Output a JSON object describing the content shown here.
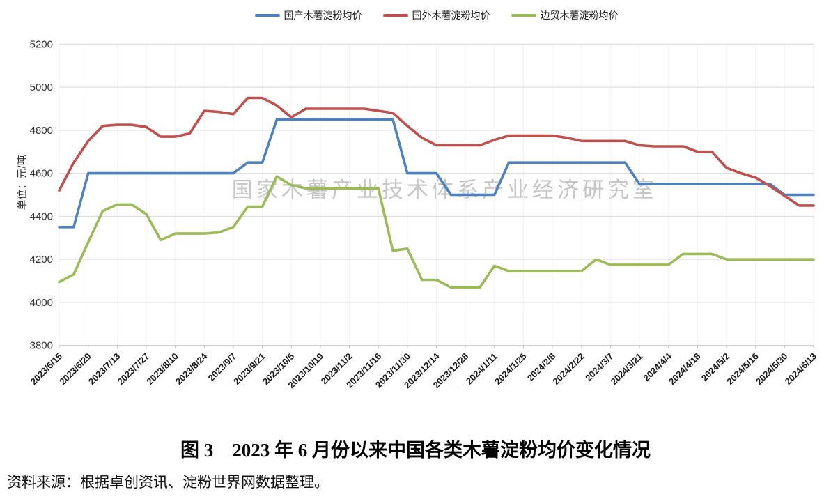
{
  "figure": {
    "title": "图 3　2023 年 6 月份以来中国各类木薯淀粉均价变化情况",
    "source": "资料来源：根据卓创资讯、淀粉世界网数据整理。"
  },
  "watermark": "国家木薯产业技术体系产业经济研究室",
  "chart_data": {
    "type": "line",
    "title": "",
    "xlabel": "",
    "ylabel": "单位：元/吨",
    "ylim": [
      3800,
      5200
    ],
    "y_ticks": [
      3800,
      4000,
      4200,
      4400,
      4600,
      4800,
      5000,
      5200
    ],
    "grid": true,
    "legend_position": "top-center",
    "x_tick_every": 2,
    "x": [
      "2023/6/15",
      "2023/6/22",
      "2023/6/29",
      "2023/7/6",
      "2023/7/13",
      "2023/7/20",
      "2023/7/27",
      "2023/8/3",
      "2023/8/10",
      "2023/8/17",
      "2023/8/24",
      "2023/8/31",
      "2023/9/7",
      "2023/9/14",
      "2023/9/21",
      "2023/9/28",
      "2023/10/5",
      "2023/10/12",
      "2023/10/19",
      "2023/10/26",
      "2023/11/2",
      "2023/11/9",
      "2023/11/16",
      "2023/11/23",
      "2023/11/30",
      "2023/12/7",
      "2023/12/14",
      "2023/12/21",
      "2023/12/28",
      "2024/1/4",
      "2024/1/11",
      "2024/1/18",
      "2024/1/25",
      "2024/2/1",
      "2024/2/8",
      "2024/2/15",
      "2024/2/22",
      "2024/2/29",
      "2024/3/7",
      "2024/3/14",
      "2024/3/21",
      "2024/3/28",
      "2024/4/4",
      "2024/4/11",
      "2024/4/18",
      "2024/4/25",
      "2024/5/2",
      "2024/5/9",
      "2024/5/16",
      "2024/5/23",
      "2024/5/30",
      "2024/6/6",
      "2024/6/13"
    ],
    "series": [
      {
        "name": "国产木薯淀粉均价",
        "color": "#4F81BD",
        "values": [
          4350,
          4350,
          4600,
          4600,
          4600,
          4600,
          4600,
          4600,
          4600,
          4600,
          4600,
          4600,
          4600,
          4650,
          4650,
          4850,
          4850,
          4850,
          4850,
          4850,
          4850,
          4850,
          4850,
          4850,
          4600,
          4600,
          4600,
          4500,
          4500,
          4500,
          4500,
          4650,
          4650,
          4650,
          4650,
          4650,
          4650,
          4650,
          4650,
          4650,
          4550,
          4550,
          4550,
          4550,
          4550,
          4550,
          4550,
          4550,
          4550,
          4550,
          4500,
          4500,
          4500
        ]
      },
      {
        "name": "国外木薯淀粉均价",
        "color": "#C0504D",
        "values": [
          4520,
          4650,
          4750,
          4820,
          4825,
          4825,
          4815,
          4770,
          4770,
          4785,
          4890,
          4885,
          4875,
          4950,
          4950,
          4915,
          4860,
          4900,
          4900,
          4900,
          4900,
          4900,
          4890,
          4880,
          4820,
          4765,
          4730,
          4730,
          4730,
          4730,
          4755,
          4775,
          4775,
          4775,
          4775,
          4765,
          4750,
          4750,
          4750,
          4750,
          4730,
          4725,
          4725,
          4725,
          4700,
          4700,
          4625,
          4600,
          4580,
          4540,
          4495,
          4450,
          4450
        ]
      },
      {
        "name": "边贸木薯淀粉均价",
        "color": "#9BBB59",
        "values": [
          4095,
          4130,
          4280,
          4425,
          4455,
          4455,
          4410,
          4290,
          4320,
          4320,
          4320,
          4325,
          4350,
          4445,
          4445,
          4585,
          4545,
          4530,
          4530,
          4530,
          4530,
          4530,
          4530,
          4240,
          4250,
          4105,
          4105,
          4070,
          4070,
          4070,
          4170,
          4145,
          4145,
          4145,
          4145,
          4145,
          4145,
          4200,
          4175,
          4175,
          4175,
          4175,
          4175,
          4225,
          4225,
          4225,
          4200,
          4200,
          4200,
          4200,
          4200,
          4200,
          4200
        ]
      }
    ]
  }
}
